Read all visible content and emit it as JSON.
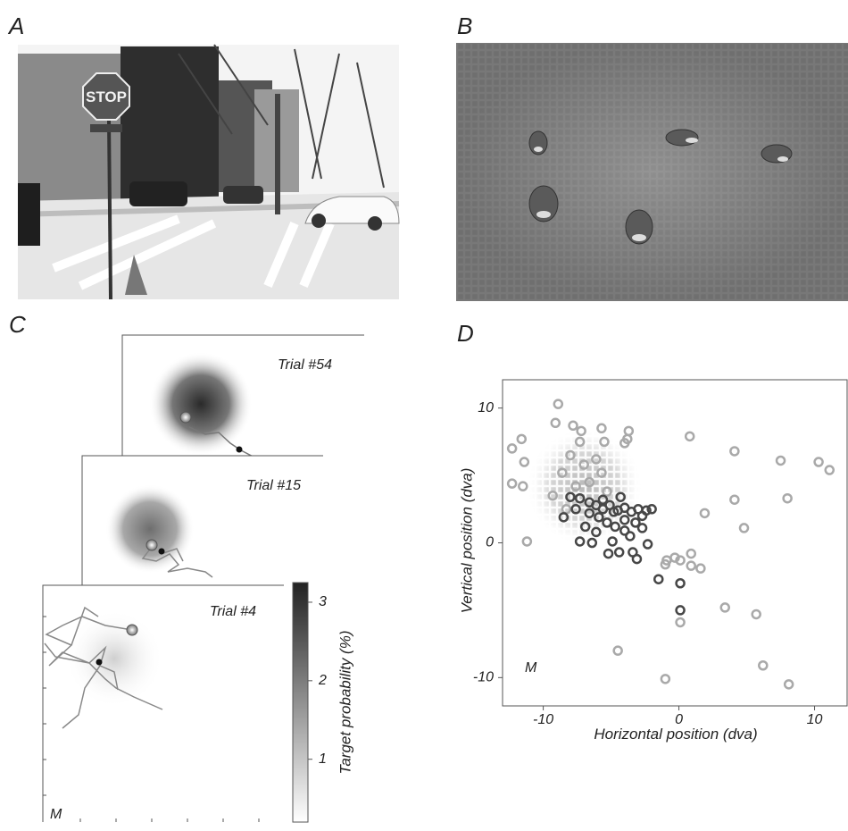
{
  "panel_labels": [
    "A",
    "B",
    "C",
    "D"
  ],
  "photo_a": {
    "sign": "STOP"
  },
  "chart_data": [
    {
      "type": "colorbar",
      "trials": [
        "Trial #54",
        "Trial #15",
        "Trial #4"
      ],
      "annotation": "M",
      "ylabel": "Target probability (%)",
      "ylim": [
        0.2,
        3.25
      ],
      "yticks": [
        1,
        2,
        3
      ]
    },
    {
      "type": "scatter",
      "annotation": "M",
      "xlabel": "Horizontal position (dva)",
      "ylabel": "Vertical position (dva)",
      "xlim": [
        -13,
        12.4
      ],
      "ylim": [
        -12.1,
        12.1
      ],
      "xticks": [
        -10,
        0,
        10
      ],
      "yticks": [
        -10,
        0,
        10
      ],
      "series": [
        {
          "color": "#a9a9a9",
          "x": [
            -12.3,
            -11.6,
            -11.4,
            -12.3,
            -11.5,
            -11.2,
            -8.9,
            -9.1,
            -7.8,
            -7.2,
            -7.3,
            -5.5,
            -5.7,
            -4.0,
            -3.7,
            -3.8,
            0.8,
            4.1,
            7.5,
            10.3,
            11.1,
            8.0,
            4.1,
            1.9,
            4.8,
            -0.9,
            -1.0,
            -0.3,
            0.1,
            0.9,
            0.9,
            1.6,
            3.4,
            5.7,
            0.1,
            -4.5,
            6.2,
            -1.0,
            8.1,
            -8.0,
            -7.0,
            -6.1,
            -8.6,
            -7.6,
            -6.6,
            -5.7,
            -9.3,
            -8.3,
            -5.3
          ],
          "y": [
            7.0,
            7.7,
            6.0,
            4.4,
            4.2,
            0.1,
            10.3,
            8.9,
            8.7,
            8.3,
            7.5,
            7.5,
            8.5,
            7.4,
            8.3,
            7.7,
            7.9,
            6.8,
            6.1,
            6.0,
            5.4,
            3.3,
            3.2,
            2.2,
            1.1,
            -1.3,
            -1.6,
            -1.1,
            -1.3,
            -0.8,
            -1.7,
            -1.9,
            -4.8,
            -5.3,
            -5.9,
            -8.0,
            -9.1,
            -10.1,
            -10.5,
            6.5,
            5.8,
            6.2,
            5.2,
            4.2,
            4.5,
            5.2,
            3.5,
            2.5,
            3.8
          ]
        },
        {
          "color": "#474747",
          "x": [
            -8.0,
            -7.3,
            -6.6,
            -6.1,
            -5.6,
            -5.1,
            -4.5,
            -4.0,
            -3.5,
            -3.0,
            -2.4,
            -2.0,
            -4.3,
            -5.9,
            -6.6,
            -7.6,
            -8.5,
            -6.9,
            -6.1,
            -5.3,
            -4.7,
            -4.0,
            -3.2,
            -2.7,
            -3.6,
            -4.9,
            -4.4,
            -5.2,
            -3.4,
            -2.3,
            -3.1,
            -1.5,
            0.1,
            -7.3,
            -6.4,
            -4.0,
            -4.8,
            -5.6,
            -2.7,
            0.1
          ],
          "y": [
            3.4,
            3.3,
            3.0,
            2.8,
            2.5,
            2.8,
            2.4,
            2.6,
            2.3,
            2.5,
            2.4,
            2.5,
            3.4,
            1.9,
            2.2,
            2.5,
            1.9,
            1.2,
            0.8,
            1.5,
            1.2,
            1.7,
            1.5,
            2.0,
            0.5,
            0.1,
            -0.7,
            -0.8,
            -0.7,
            -0.1,
            -1.2,
            -2.7,
            -3.0,
            0.1,
            0.0,
            0.9,
            2.3,
            3.2,
            1.1,
            -5.0
          ]
        }
      ]
    }
  ]
}
